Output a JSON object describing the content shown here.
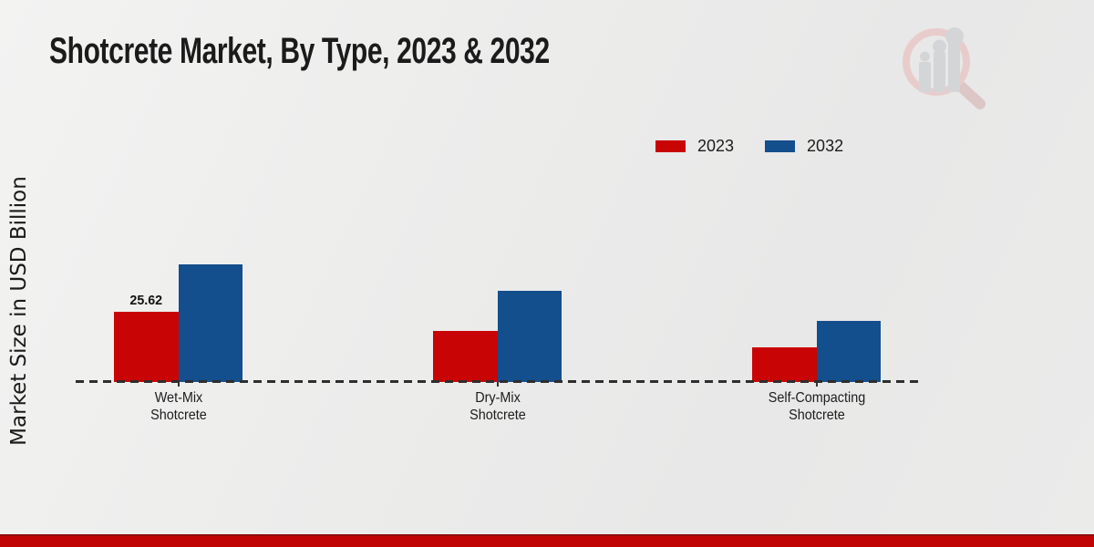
{
  "title": "Shotcrete Market, By Type, 2023 & 2032",
  "y_axis_label": "Market Size in USD Billion",
  "legend": {
    "items": [
      {
        "label": "2023",
        "color": "#c90404"
      },
      {
        "label": "2032",
        "color": "#134e8d"
      }
    ]
  },
  "watermark_icon": "magnifier-bar-chart-logo",
  "footer": {
    "bar_color": "#c00404"
  },
  "chart_data": {
    "type": "bar",
    "title": "Shotcrete Market, By Type, 2023 & 2032",
    "ylabel": "Market Size in USD Billion",
    "xlabel": "",
    "categories": [
      "Wet-Mix Shotcrete",
      "Dry-Mix Shotcrete",
      "Self-Compacting Shotcrete"
    ],
    "series": [
      {
        "name": "2023",
        "color": "#c90404",
        "values": [
          25.62,
          18.6,
          12.7
        ],
        "value_labels": [
          "25.62",
          "",
          ""
        ]
      },
      {
        "name": "2032",
        "color": "#134e8d",
        "values": [
          42.9,
          33.3,
          22.3
        ],
        "value_labels": [
          "",
          "",
          ""
        ]
      }
    ],
    "ylim": [
      0,
      45
    ],
    "y_axis_ticks_visible": false,
    "grid": false,
    "baseline_style": "dashed",
    "legend_position": "top-right"
  }
}
